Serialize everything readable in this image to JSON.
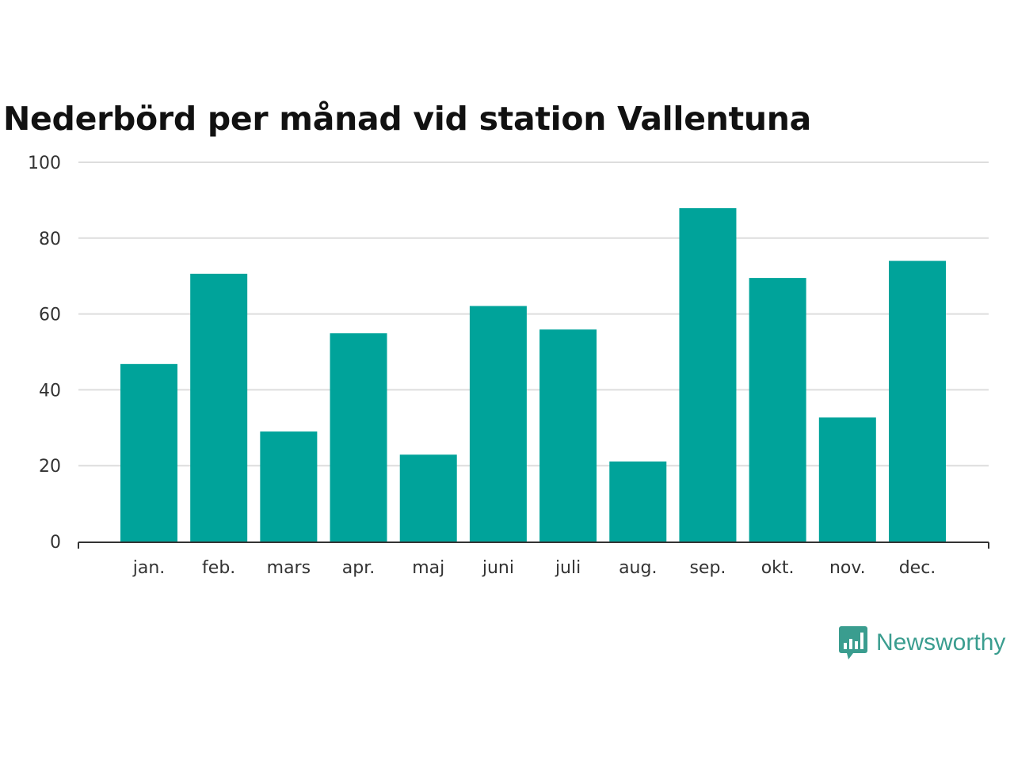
{
  "chart_data": {
    "type": "bar",
    "title": "Nederbörd per månad vid station Vallentuna",
    "xlabel": "",
    "ylabel": "",
    "categories": [
      "jan.",
      "feb.",
      "mars",
      "apr.",
      "maj",
      "juni",
      "juli",
      "aug.",
      "sep.",
      "okt.",
      "nov.",
      "dec."
    ],
    "values": [
      46.8,
      70.6,
      29.0,
      54.9,
      22.9,
      62.1,
      55.9,
      21.1,
      87.9,
      69.5,
      32.7,
      74.0
    ],
    "ylim": [
      0,
      100
    ],
    "yticks": [
      0,
      20,
      40,
      60,
      80,
      100
    ],
    "grid": true,
    "bar_color": "#00a39a"
  },
  "brand": {
    "name": "Newsworthy",
    "icon": "newsworthy-logo-icon",
    "color": "#3a9d8f"
  }
}
